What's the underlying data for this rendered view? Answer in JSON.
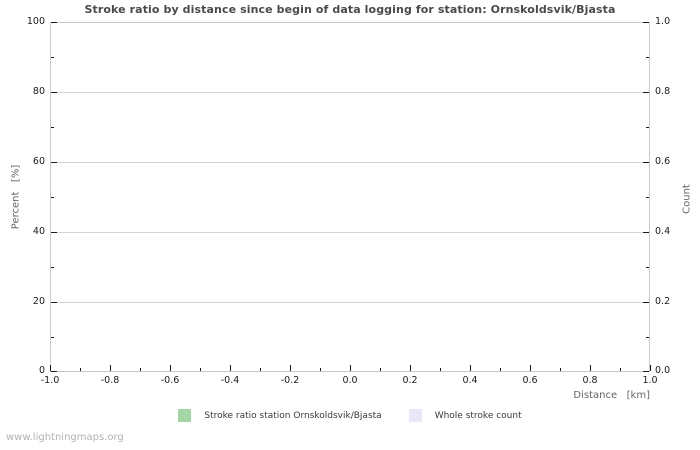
{
  "title": "Stroke ratio by distance since begin of data logging for station: Ornskoldsvik/Bjasta",
  "watermark": "www.lightningmaps.org",
  "colors": {
    "stroke_ratio_green": "#a5d6a5",
    "whole_stroke_lavender": "#e8e8f8",
    "gridline": "#d4d4d4",
    "plot_border": "#c8c8c8",
    "tick": "#1a1a1a",
    "title_text": "#4a4a4a",
    "axis_text": "#666666",
    "watermark_text": "#b2b2b2"
  },
  "legend": [
    {
      "label": "Stroke ratio station Ornskoldsvik/Bjasta",
      "color": "#a5d6a5"
    },
    {
      "label": "Whole stroke count",
      "color": "#e8e8f8"
    }
  ],
  "chart_data": {
    "type": "line",
    "title": "Stroke ratio by distance since begin of data logging for station: Ornskoldsvik/Bjasta",
    "xlabel": "Distance   [km]",
    "ylabel_left": "Percent   [%]",
    "ylabel_right": "Count",
    "xlim": [
      -1.0,
      1.0
    ],
    "ylim_left": [
      0,
      100
    ],
    "ylim_right": [
      0.0,
      1.0
    ],
    "x_ticks": [
      "-1.0",
      "-0.8",
      "-0.6",
      "-0.4",
      "-0.2",
      "0.0",
      "0.2",
      "0.4",
      "0.6",
      "0.8",
      "1.0"
    ],
    "y_ticks_left": [
      "0",
      "20",
      "40",
      "60",
      "80",
      "100"
    ],
    "y_ticks_right": [
      "0.0",
      "0.2",
      "0.4",
      "0.6",
      "0.8",
      "1.0"
    ],
    "grid": "horizontal-only",
    "legend_position": "bottom-center",
    "series": [
      {
        "name": "Stroke ratio station Ornskoldsvik/Bjasta",
        "color": "#a5d6a5",
        "points": []
      },
      {
        "name": "Whole stroke count",
        "color": "#e8e8f8",
        "points": []
      }
    ]
  }
}
